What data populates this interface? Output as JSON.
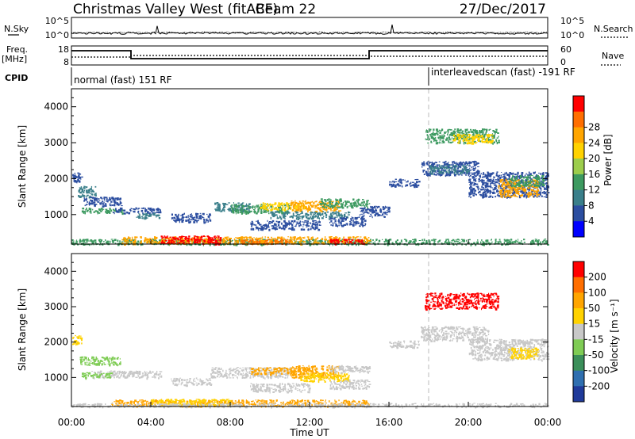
{
  "header": {
    "title": "Christmas Valley West (fitACF)",
    "beam": "Beam 22",
    "date": "27/Dec/2017"
  },
  "strip_labels": {
    "nsky": "N.Sky",
    "nsky_ticks": [
      "10^5",
      "10^0"
    ],
    "freq": "Freq.",
    "freq_unit": "[MHz]",
    "freq_ticks": [
      "18",
      "8"
    ],
    "nsearch": "N.Search",
    "nsearch_ticks": [
      "10^5",
      "10^0"
    ],
    "nave": "Nave",
    "nave_ticks": [
      "60",
      "0"
    ],
    "cpid": "CPID",
    "cpid_segments": [
      {
        "label": "normal (fast) 151 RF",
        "start_h": 0,
        "end_h": 18
      },
      {
        "label": "interleavedscan (fast) -191 RF",
        "start_h": 18,
        "end_h": 24
      }
    ]
  },
  "axes": {
    "xlabel": "Time UT",
    "x_ticks": [
      "00:00",
      "04:00",
      "08:00",
      "12:00",
      "16:00",
      "20:00",
      "00:00"
    ],
    "ylabel": "Slant Range [km]",
    "y_ticks": [
      "1000",
      "2000",
      "3000",
      "4000"
    ]
  },
  "colors": {
    "red": "#ff0000",
    "orange_red": "#ff6e00",
    "orange": "#ffa500",
    "yellow": "#ffd200",
    "green_light": "#7fcc55",
    "green": "#3d9a60",
    "teal": "#3a7f8a",
    "blue_dark": "#2c4ea0",
    "blue": "#0000ff",
    "navy": "#1f3a9a",
    "gray": "#c8c8c8",
    "gray_dash": "#bbbbbb"
  },
  "colorbars": {
    "power": {
      "label": "Power [dB]",
      "ticks": [
        "4",
        "8",
        "12",
        "16",
        "20",
        "24",
        "28"
      ],
      "colors": [
        "#0000ff",
        "#2c4ea0",
        "#3a7f8a",
        "#3d9a60",
        "#9ccd4c",
        "#ffd200",
        "#ffa500",
        "#ff6e00",
        "#ff0000"
      ]
    },
    "velocity": {
      "label": "Velocity [m s⁻¹]",
      "ticks": [
        "200",
        "100",
        "50",
        "15",
        "-15",
        "-50",
        "-100",
        "-200"
      ],
      "colors": [
        "#1f3a9a",
        "#2f6fb0",
        "#3b8f5a",
        "#7fcc55",
        "#c8c8c8",
        "#ffd200",
        "#ffa500",
        "#ff6e00",
        "#ff0000"
      ]
    }
  },
  "chart_data": [
    {
      "type": "heatmap",
      "quantity": "power",
      "xlim": [
        0,
        24
      ],
      "ylim": [
        180,
        4500
      ],
      "x_unit": "hours UT",
      "y_unit": "km",
      "mode_change_h": 18,
      "echo_regions": [
        {
          "t0": 0.0,
          "t1": 0.5,
          "r0": 1900,
          "r1": 2200,
          "color": "blue_dark"
        },
        {
          "t0": 0.3,
          "t1": 1.2,
          "r0": 1500,
          "r1": 1800,
          "color": "teal"
        },
        {
          "t0": 0.6,
          "t1": 2.5,
          "r0": 1250,
          "r1": 1500,
          "color": "blue_dark"
        },
        {
          "t0": 0.5,
          "t1": 2.6,
          "r0": 1050,
          "r1": 1200,
          "color": "green"
        },
        {
          "t0": 2.0,
          "t1": 4.5,
          "r0": 1050,
          "r1": 1200,
          "color": "blue_dark"
        },
        {
          "t0": 3.2,
          "t1": 4.4,
          "r0": 900,
          "r1": 1050,
          "color": "teal"
        },
        {
          "t0": 5.0,
          "t1": 7.0,
          "r0": 800,
          "r1": 1050,
          "color": "blue_dark"
        },
        {
          "t0": 7.2,
          "t1": 9.0,
          "r0": 1100,
          "r1": 1350,
          "color": "teal"
        },
        {
          "t0": 8.0,
          "t1": 11.0,
          "r0": 1050,
          "r1": 1300,
          "color": "green"
        },
        {
          "t0": 9.5,
          "t1": 11.8,
          "r0": 1150,
          "r1": 1350,
          "color": "yellow"
        },
        {
          "t0": 11.0,
          "t1": 13.5,
          "r0": 1100,
          "r1": 1400,
          "color": "orange"
        },
        {
          "t0": 12.5,
          "t1": 15.0,
          "r0": 1200,
          "r1": 1450,
          "color": "green"
        },
        {
          "t0": 10.0,
          "t1": 14.0,
          "r0": 900,
          "r1": 1100,
          "color": "teal"
        },
        {
          "t0": 9.0,
          "t1": 12.5,
          "r0": 600,
          "r1": 850,
          "color": "blue_dark"
        },
        {
          "t0": 13.0,
          "t1": 14.8,
          "r0": 700,
          "r1": 950,
          "color": "blue_dark"
        },
        {
          "t0": 14.5,
          "t1": 16.0,
          "r0": 950,
          "r1": 1250,
          "color": "blue_dark"
        },
        {
          "t0": 0.0,
          "t1": 24.0,
          "r0": 180,
          "r1": 330,
          "color": "green"
        },
        {
          "t0": 2.5,
          "t1": 15.0,
          "r0": 200,
          "r1": 400,
          "color": "orange"
        },
        {
          "t0": 4.5,
          "t1": 7.5,
          "r0": 200,
          "r1": 420,
          "color": "red"
        },
        {
          "t0": 8.5,
          "t1": 11.0,
          "r0": 200,
          "r1": 330,
          "color": "orange_red"
        },
        {
          "t0": 13.0,
          "t1": 14.8,
          "r0": 200,
          "r1": 330,
          "color": "red"
        },
        {
          "t0": 16.0,
          "t1": 17.5,
          "r0": 1800,
          "r1": 2000,
          "color": "blue_dark"
        },
        {
          "t0": 17.8,
          "t1": 21.5,
          "r0": 3000,
          "r1": 3400,
          "color": "green"
        },
        {
          "t0": 19.2,
          "t1": 21.2,
          "r0": 3000,
          "r1": 3250,
          "color": "yellow"
        },
        {
          "t0": 17.6,
          "t1": 20.5,
          "r0": 2100,
          "r1": 2500,
          "color": "blue_dark"
        },
        {
          "t0": 18.0,
          "t1": 20.0,
          "r0": 2150,
          "r1": 2400,
          "color": "teal"
        },
        {
          "t0": 20.0,
          "t1": 24.0,
          "r0": 1500,
          "r1": 2200,
          "color": "blue_dark"
        },
        {
          "t0": 21.5,
          "t1": 23.5,
          "r0": 1500,
          "r1": 2000,
          "color": "orange"
        },
        {
          "t0": 22.0,
          "t1": 23.8,
          "r0": 1800,
          "r1": 2100,
          "color": "green"
        }
      ]
    },
    {
      "type": "heatmap",
      "quantity": "velocity",
      "xlim": [
        0,
        24
      ],
      "ylim": [
        180,
        4500
      ],
      "x_unit": "hours UT",
      "y_unit": "km",
      "mode_change_h": 18,
      "echo_regions": [
        {
          "t0": 0.0,
          "t1": 0.5,
          "r0": 1950,
          "r1": 2200,
          "color": "yellow"
        },
        {
          "t0": 0.4,
          "t1": 2.5,
          "r0": 1350,
          "r1": 1600,
          "color": "green_light"
        },
        {
          "t0": 1.0,
          "t1": 4.5,
          "r0": 1000,
          "r1": 1200,
          "color": "gray"
        },
        {
          "t0": 0.5,
          "t1": 2.0,
          "r0": 1000,
          "r1": 1150,
          "color": "green_light"
        },
        {
          "t0": 5.0,
          "t1": 7.0,
          "r0": 800,
          "r1": 1000,
          "color": "gray"
        },
        {
          "t0": 7.0,
          "t1": 11.0,
          "r0": 1000,
          "r1": 1300,
          "color": "gray"
        },
        {
          "t0": 9.0,
          "t1": 11.5,
          "r0": 1100,
          "r1": 1300,
          "color": "orange"
        },
        {
          "t0": 11.0,
          "t1": 13.5,
          "r0": 1000,
          "r1": 1350,
          "color": "orange"
        },
        {
          "t0": 11.5,
          "t1": 14.0,
          "r0": 900,
          "r1": 1150,
          "color": "yellow"
        },
        {
          "t0": 13.0,
          "t1": 15.0,
          "r0": 1150,
          "r1": 1350,
          "color": "gray"
        },
        {
          "t0": 9.0,
          "t1": 12.0,
          "r0": 600,
          "r1": 850,
          "color": "gray"
        },
        {
          "t0": 13.0,
          "t1": 15.0,
          "r0": 700,
          "r1": 950,
          "color": "gray"
        },
        {
          "t0": 2.0,
          "t1": 15.0,
          "r0": 200,
          "r1": 380,
          "color": "orange"
        },
        {
          "t0": 4.0,
          "t1": 8.0,
          "r0": 220,
          "r1": 400,
          "color": "yellow"
        },
        {
          "t0": 0.0,
          "t1": 24.0,
          "r0": 180,
          "r1": 280,
          "color": "gray"
        },
        {
          "t0": 16.0,
          "t1": 17.5,
          "r0": 1850,
          "r1": 2050,
          "color": "gray"
        },
        {
          "t0": 17.8,
          "t1": 21.5,
          "r0": 2950,
          "r1": 3400,
          "color": "red"
        },
        {
          "t0": 17.6,
          "t1": 21.0,
          "r0": 2050,
          "r1": 2450,
          "color": "gray"
        },
        {
          "t0": 20.0,
          "t1": 24.0,
          "r0": 1500,
          "r1": 2100,
          "color": "gray"
        },
        {
          "t0": 22.0,
          "t1": 23.5,
          "r0": 1550,
          "r1": 1850,
          "color": "yellow"
        }
      ]
    }
  ]
}
